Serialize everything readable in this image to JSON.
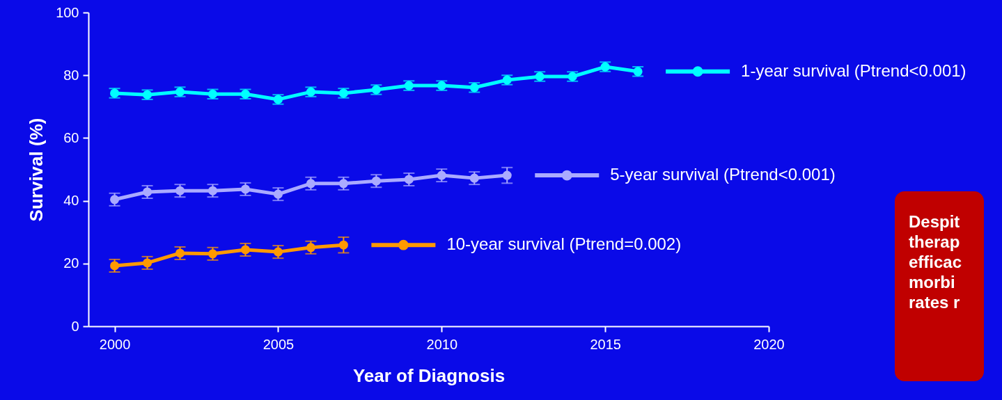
{
  "chart_data": {
    "type": "line",
    "xlabel": "Year of Diagnosis",
    "ylabel": "Survival (%)",
    "x": [
      2000,
      2001,
      2002,
      2003,
      2004,
      2005,
      2006,
      2007,
      2008,
      2009,
      2010,
      2011,
      2012,
      2013,
      2014,
      2015,
      2016
    ],
    "series": [
      {
        "name": "1-year survival (Ptrend<0.001)",
        "color": "#00ffff",
        "values": [
          74.3,
          73.8,
          74.7,
          74.0,
          74.0,
          72.3,
          74.7,
          74.3,
          75.4,
          76.7,
          76.7,
          76.1,
          78.5,
          79.6,
          79.6,
          82.7,
          81.2
        ],
        "errors": [
          1.5,
          1.5,
          1.5,
          1.5,
          1.5,
          1.5,
          1.5,
          1.5,
          1.5,
          1.5,
          1.5,
          1.5,
          1.5,
          1.5,
          1.5,
          1.5,
          1.5
        ]
      },
      {
        "name": "5-year survival (Ptrend<0.001)",
        "color": "#aaaaff",
        "x": [
          2000,
          2001,
          2002,
          2003,
          2004,
          2005,
          2006,
          2007,
          2008,
          2009,
          2010,
          2011,
          2012
        ],
        "values": [
          40.4,
          42.8,
          43.2,
          43.2,
          43.7,
          42.1,
          45.5,
          45.5,
          46.3,
          46.8,
          48.1,
          47.2,
          48.1
        ],
        "errors": [
          2,
          2,
          2,
          2,
          2,
          2,
          2,
          2,
          2,
          2,
          2,
          2,
          2.5
        ]
      },
      {
        "name": "10-year survival (Ptrend=0.002)",
        "color": "#ff9900",
        "x": [
          2000,
          2001,
          2002,
          2003,
          2004,
          2005,
          2006,
          2007
        ],
        "values": [
          19.3,
          20.2,
          23.3,
          23.1,
          24.4,
          23.7,
          25.1,
          25.9
        ],
        "errors": [
          2,
          2,
          2,
          2,
          2,
          2,
          2,
          2.5
        ]
      }
    ],
    "xlim": [
      1999.2,
      2020
    ],
    "xticks": [
      2000,
      2005,
      2010,
      2015,
      2020
    ],
    "ylim": [
      0,
      100
    ],
    "yticks": [
      0,
      20,
      40,
      60,
      80,
      100
    ],
    "grid": false,
    "legend": "right",
    "marker": "circle",
    "line_style": "solid",
    "annotations": [
      "Despit\ntherap\nefficac\nmorbi\nrates r"
    ]
  }
}
